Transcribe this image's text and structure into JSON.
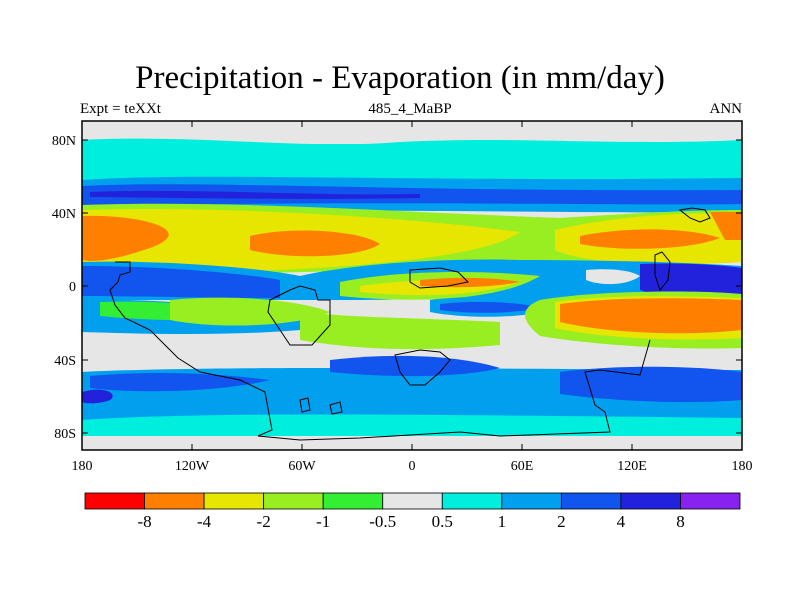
{
  "header": {
    "title": "Precipitation - Evaporation (in mm/day)",
    "left_label": "Expt = teXXt",
    "center_label": "485_4_MaBP",
    "right_label": "ANN"
  },
  "map": {
    "lat_ticks": [
      "80N",
      "40N",
      "0",
      "40S",
      "80S"
    ],
    "lon_ticks": [
      "180",
      "120W",
      "60W",
      "0",
      "60E",
      "120E",
      "180"
    ]
  },
  "colorbar": {
    "colors": [
      "#ff0000",
      "#ff8000",
      "#e6e600",
      "#99ee22",
      "#33ee33",
      "#e6e6e6",
      "#00eedd",
      "#00a0ee",
      "#1155ee",
      "#2222dd",
      "#8822ee"
    ],
    "labels": [
      "-8",
      "-4",
      "-2",
      "-1",
      "-0.5",
      "0.5",
      "1",
      "2",
      "4",
      "8"
    ]
  }
}
